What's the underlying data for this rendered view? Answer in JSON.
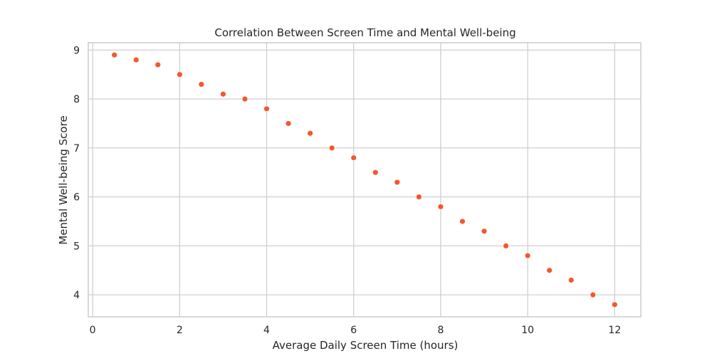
{
  "chart_data": {
    "type": "scatter",
    "title": "Correlation Between Screen Time and Mental Well-being",
    "xlabel": "Average Daily Screen Time (hours)",
    "ylabel": "Mental Well-being Score",
    "xlim": [
      -0.1,
      12.6
    ],
    "ylim": [
      3.55,
      9.15
    ],
    "xticks": [
      0,
      2,
      4,
      6,
      8,
      10,
      12
    ],
    "yticks": [
      4,
      5,
      6,
      7,
      8,
      9
    ],
    "grid": true,
    "marker_color": "#f4572f",
    "x": [
      0.5,
      1.0,
      1.5,
      2.0,
      2.5,
      3.0,
      3.5,
      4.0,
      4.5,
      5.0,
      5.5,
      6.0,
      6.5,
      7.0,
      7.5,
      8.0,
      8.5,
      9.0,
      9.5,
      10.0,
      10.5,
      11.0,
      11.5,
      12.0
    ],
    "y": [
      8.9,
      8.8,
      8.7,
      8.5,
      8.3,
      8.1,
      8.0,
      7.8,
      7.5,
      7.3,
      7.0,
      6.8,
      6.5,
      6.3,
      6.0,
      5.8,
      5.5,
      5.3,
      5.0,
      4.8,
      4.5,
      4.3,
      4.0,
      3.8
    ]
  }
}
